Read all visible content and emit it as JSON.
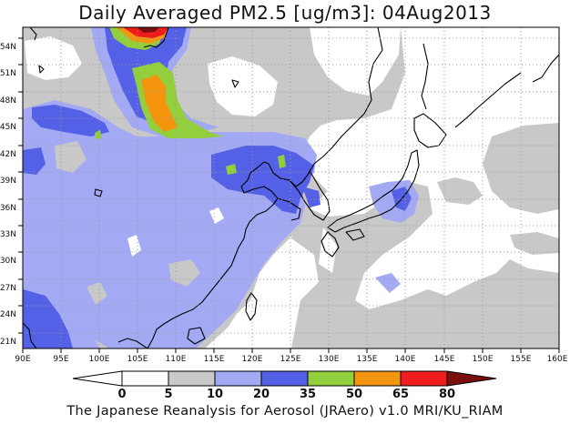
{
  "title": "Daily Averaged PM2.5 [ug/m3]: 04Aug2013",
  "footer": "The Japanese Reanalysis for Aerosol (JRAero) v1.0 MRI/KU_RIAM",
  "map": {
    "lon_range": [
      90,
      160
    ],
    "lat_range": [
      19.5,
      55.5
    ],
    "lon_ticks": [
      "90E",
      "95E",
      "100E",
      "105E",
      "110E",
      "115E",
      "120E",
      "125E",
      "130E",
      "135E",
      "140E",
      "145E",
      "150E",
      "155E",
      "160E"
    ],
    "lat_ticks": [
      "21N",
      "24N",
      "27N",
      "30N",
      "33N",
      "36N",
      "39N",
      "42N",
      "45N",
      "48N",
      "51N",
      "54N"
    ],
    "grid": true
  },
  "colorbar": {
    "labels": [
      "0",
      "5",
      "10",
      "20",
      "35",
      "50",
      "65",
      "80"
    ],
    "colors": {
      "lt0": "#ffffff",
      "c0_5": "#ffffff",
      "c5_10": "#c8c8c8",
      "c10_20": "#a3a9f3",
      "c20_35": "#5461e6",
      "c35_50": "#93cf3c",
      "c50_65": "#f4940f",
      "c65_80": "#ee1c1c",
      "gt80": "#7a0f0f"
    }
  }
}
